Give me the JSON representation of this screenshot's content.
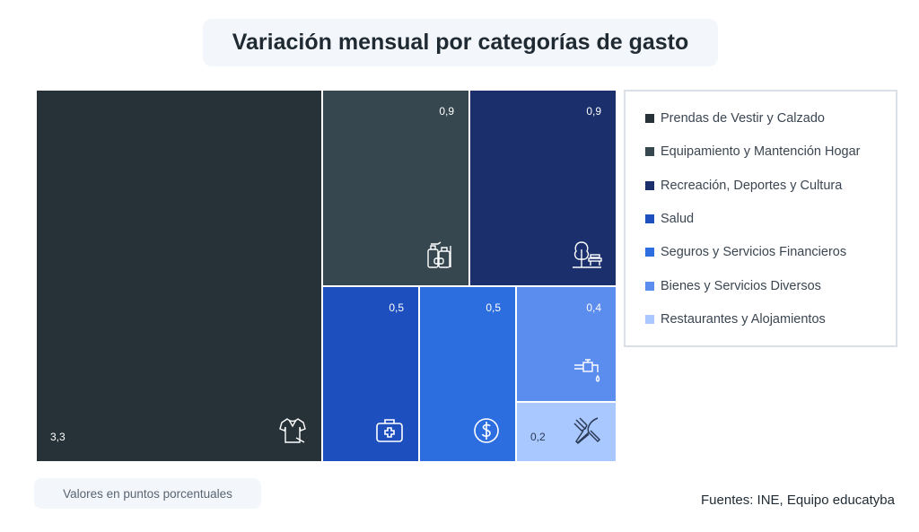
{
  "title": "Variación mensual por categorías de gasto",
  "note": "Valores en puntos porcentuales",
  "source": "Fuentes: INE, Equipo educatyba",
  "chart_data": {
    "type": "treemap",
    "title": "Variación mensual por categorías de gasto",
    "unit": "puntos porcentuales",
    "legend_position": "right",
    "items": [
      {
        "name": "Prendas de Vestir y Calzado",
        "value": 3.3,
        "label": "3,3",
        "color": "#263238",
        "icon": "shirt-icon"
      },
      {
        "name": "Equipamiento y Mantención Hogar",
        "value": 0.9,
        "label": "0,9",
        "color": "#37474f",
        "icon": "cleaning-products-icon"
      },
      {
        "name": "Recreación, Deportes y Cultura",
        "value": 0.9,
        "label": "0,9",
        "color": "#1a2f6b",
        "icon": "park-icon"
      },
      {
        "name": "Salud",
        "value": 0.5,
        "label": "0,5",
        "color": "#1e4fbf",
        "icon": "medical-kit-icon"
      },
      {
        "name": "Seguros y Servicios Financieros",
        "value": 0.5,
        "label": "0,5",
        "color": "#2c6de0",
        "icon": "dollar-coin-icon"
      },
      {
        "name": "Bienes y Servicios Diversos",
        "value": 0.4,
        "label": "0,4",
        "color": "#5b8def",
        "icon": "faucet-icon"
      },
      {
        "name": "Restaurantes y Alojamientos",
        "value": 0.2,
        "label": "0,2",
        "color": "#a9c8ff",
        "icon": "fork-knife-icon"
      }
    ]
  }
}
